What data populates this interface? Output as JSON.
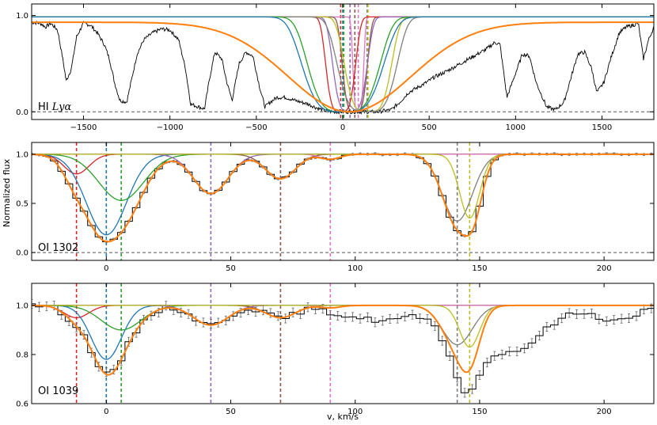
{
  "figure": {
    "xlabel": "v, km/s",
    "ylabel": "Normalized flux"
  },
  "colors": {
    "blue": "#1f77b4",
    "orange": "#ff7f0e",
    "green": "#2ca02c",
    "red": "#d62728",
    "purple": "#9467bd",
    "brown": "#8c564b",
    "pink": "#e377c2",
    "gray": "#7f7f7f",
    "olive": "#bcbd22",
    "data": "#000000"
  },
  "chart_data": [
    {
      "type": "line",
      "label_prefix": "HI ",
      "label_italic": "Lyα",
      "xlim": [
        -1800,
        1800
      ],
      "ylim": [
        -0.08,
        1.12
      ],
      "xticks": [
        -1500,
        -1000,
        -500,
        0,
        500,
        1000,
        1500
      ],
      "xtick_labels": [
        "−1500",
        "−1000",
        "−500",
        "0",
        "500",
        "1000",
        "1500"
      ],
      "yticks": [
        0.0,
        1.0
      ],
      "ytick_labels": [
        "0.0",
        "1.0"
      ],
      "component_velocities": [
        -12,
        0,
        6,
        42,
        70,
        90,
        141,
        146
      ],
      "component_colors": [
        "red",
        "blue",
        "green",
        "purple",
        "brown",
        "pink",
        "gray",
        "olive"
      ],
      "component_profiles": [
        {
          "color": "pink",
          "v0": 90,
          "width": 35
        },
        {
          "color": "brown",
          "v0": 70,
          "width": 80
        },
        {
          "color": "red",
          "v0": -12,
          "width": 95
        },
        {
          "color": "purple",
          "v0": 42,
          "width": 110
        },
        {
          "color": "olive",
          "v0": 146,
          "width": 150
        },
        {
          "color": "gray",
          "v0": 141,
          "width": 190
        },
        {
          "color": "green",
          "v0": 6,
          "width": 230
        },
        {
          "color": "blue",
          "v0": 0,
          "width": 260
        }
      ],
      "total_profile": {
        "color": "orange",
        "v0": 40,
        "width": 420,
        "continuum": 0.93
      },
      "spectrum_knots": [
        [
          -1800,
          0.93
        ],
        [
          -1750,
          0.92
        ],
        [
          -1720,
          0.88
        ],
        [
          -1690,
          0.92
        ],
        [
          -1650,
          0.85
        ],
        [
          -1620,
          0.55
        ],
        [
          -1600,
          0.32
        ],
        [
          -1570,
          0.45
        ],
        [
          -1540,
          0.78
        ],
        [
          -1500,
          0.92
        ],
        [
          -1460,
          0.9
        ],
        [
          -1420,
          0.82
        ],
        [
          -1380,
          0.7
        ],
        [
          -1350,
          0.55
        ],
        [
          -1320,
          0.3
        ],
        [
          -1290,
          0.12
        ],
        [
          -1250,
          0.1
        ],
        [
          -1220,
          0.35
        ],
        [
          -1190,
          0.6
        ],
        [
          -1150,
          0.75
        ],
        [
          -1100,
          0.82
        ],
        [
          -1050,
          0.86
        ],
        [
          -1000,
          0.85
        ],
        [
          -950,
          0.75
        ],
        [
          -910,
          0.45
        ],
        [
          -880,
          0.08
        ],
        [
          -800,
          0.03
        ],
        [
          -770,
          0.35
        ],
        [
          -740,
          0.62
        ],
        [
          -700,
          0.55
        ],
        [
          -670,
          0.3
        ],
        [
          -640,
          0.12
        ],
        [
          -600,
          0.5
        ],
        [
          -560,
          0.62
        ],
        [
          -520,
          0.58
        ],
        [
          -480,
          0.25
        ],
        [
          -450,
          0.05
        ],
        [
          -420,
          0.1
        ],
        [
          -380,
          0.15
        ],
        [
          -330,
          0.15
        ],
        [
          -280,
          0.12
        ],
        [
          -240,
          0.1
        ],
        [
          -200,
          0.08
        ],
        [
          -150,
          0.04
        ],
        [
          -100,
          0.01
        ],
        [
          -50,
          0.0
        ],
        [
          0,
          0.0
        ],
        [
          100,
          0.0
        ],
        [
          200,
          0.0
        ],
        [
          280,
          0.02
        ],
        [
          330,
          0.1
        ],
        [
          380,
          0.2
        ],
        [
          430,
          0.25
        ],
        [
          480,
          0.3
        ],
        [
          530,
          0.36
        ],
        [
          600,
          0.42
        ],
        [
          680,
          0.5
        ],
        [
          760,
          0.58
        ],
        [
          830,
          0.65
        ],
        [
          880,
          0.72
        ],
        [
          910,
          0.7
        ],
        [
          950,
          0.15
        ],
        [
          990,
          0.35
        ],
        [
          1040,
          0.6
        ],
        [
          1080,
          0.58
        ],
        [
          1120,
          0.3
        ],
        [
          1180,
          0.05
        ],
        [
          1230,
          0.02
        ],
        [
          1280,
          0.1
        ],
        [
          1320,
          0.35
        ],
        [
          1360,
          0.6
        ],
        [
          1400,
          0.62
        ],
        [
          1440,
          0.45
        ],
        [
          1470,
          0.2
        ],
        [
          1510,
          0.3
        ],
        [
          1550,
          0.55
        ],
        [
          1600,
          0.82
        ],
        [
          1640,
          0.88
        ],
        [
          1680,
          0.9
        ],
        [
          1710,
          0.92
        ],
        [
          1740,
          0.55
        ],
        [
          1770,
          0.75
        ],
        [
          1800,
          0.88
        ]
      ]
    },
    {
      "type": "line",
      "label": "OI 1302",
      "xlim": [
        -30,
        220
      ],
      "ylim": [
        -0.08,
        1.12
      ],
      "xticks": [
        0,
        50,
        100,
        150,
        200
      ],
      "xtick_labels": [
        "0",
        "50",
        "100",
        "150",
        "200"
      ],
      "yticks": [
        0.0,
        0.5,
        1.0
      ],
      "ytick_labels": [
        "0.0",
        "0.5",
        "1.0"
      ],
      "component_velocities": [
        -12,
        0,
        6,
        42,
        70,
        90,
        141,
        146
      ],
      "component_colors": [
        "red",
        "blue",
        "green",
        "purple",
        "brown",
        "pink",
        "gray",
        "olive"
      ],
      "components": [
        {
          "color": "red",
          "v0": -12,
          "depth": 0.2,
          "sigma": 5
        },
        {
          "color": "blue",
          "v0": 0,
          "depth": 0.82,
          "sigma": 8
        },
        {
          "color": "green",
          "v0": 6,
          "depth": 0.47,
          "sigma": 9
        },
        {
          "color": "purple",
          "v0": 42,
          "depth": 0.4,
          "sigma": 7
        },
        {
          "color": "brown",
          "v0": 70,
          "depth": 0.25,
          "sigma": 6
        },
        {
          "color": "pink",
          "v0": 90,
          "depth": 0.05,
          "sigma": 4
        },
        {
          "color": "gray",
          "v0": 141,
          "depth": 0.68,
          "sigma": 6
        },
        {
          "color": "olive",
          "v0": 146,
          "depth": 0.65,
          "sigma": 4
        }
      ],
      "data_step": 3,
      "error": 0.01
    },
    {
      "type": "line",
      "label": "OI 1039",
      "xlim": [
        -30,
        220
      ],
      "ylim": [
        0.6,
        1.09
      ],
      "xticks": [
        0,
        50,
        100,
        150,
        200
      ],
      "xtick_labels": [
        "0",
        "50",
        "100",
        "150",
        "200"
      ],
      "yticks": [
        0.6,
        0.8,
        1.0
      ],
      "ytick_labels": [
        "0.6",
        "0.8",
        "1.0"
      ],
      "component_velocities": [
        -12,
        0,
        6,
        42,
        70,
        90,
        141,
        146
      ],
      "component_colors": [
        "red",
        "blue",
        "green",
        "purple",
        "brown",
        "pink",
        "gray",
        "olive"
      ],
      "components": [
        {
          "color": "red",
          "v0": -12,
          "depth": 0.05,
          "sigma": 5
        },
        {
          "color": "blue",
          "v0": 0,
          "depth": 0.22,
          "sigma": 6
        },
        {
          "color": "green",
          "v0": 6,
          "depth": 0.1,
          "sigma": 8
        },
        {
          "color": "purple",
          "v0": 42,
          "depth": 0.08,
          "sigma": 7
        },
        {
          "color": "brown",
          "v0": 70,
          "depth": 0.05,
          "sigma": 6
        },
        {
          "color": "pink",
          "v0": 90,
          "depth": 0.01,
          "sigma": 4
        },
        {
          "color": "gray",
          "v0": 141,
          "depth": 0.16,
          "sigma": 6
        },
        {
          "color": "olive",
          "v0": 146,
          "depth": 0.17,
          "sigma": 4
        }
      ],
      "data_step": 3,
      "error": 0.018,
      "extra_absorption": [
        {
          "v0": 110,
          "depth": 0.06,
          "sigma": 14
        },
        {
          "v0": 160,
          "depth": 0.2,
          "sigma": 14
        },
        {
          "v0": 205,
          "depth": 0.06,
          "sigma": 8
        }
      ]
    }
  ]
}
